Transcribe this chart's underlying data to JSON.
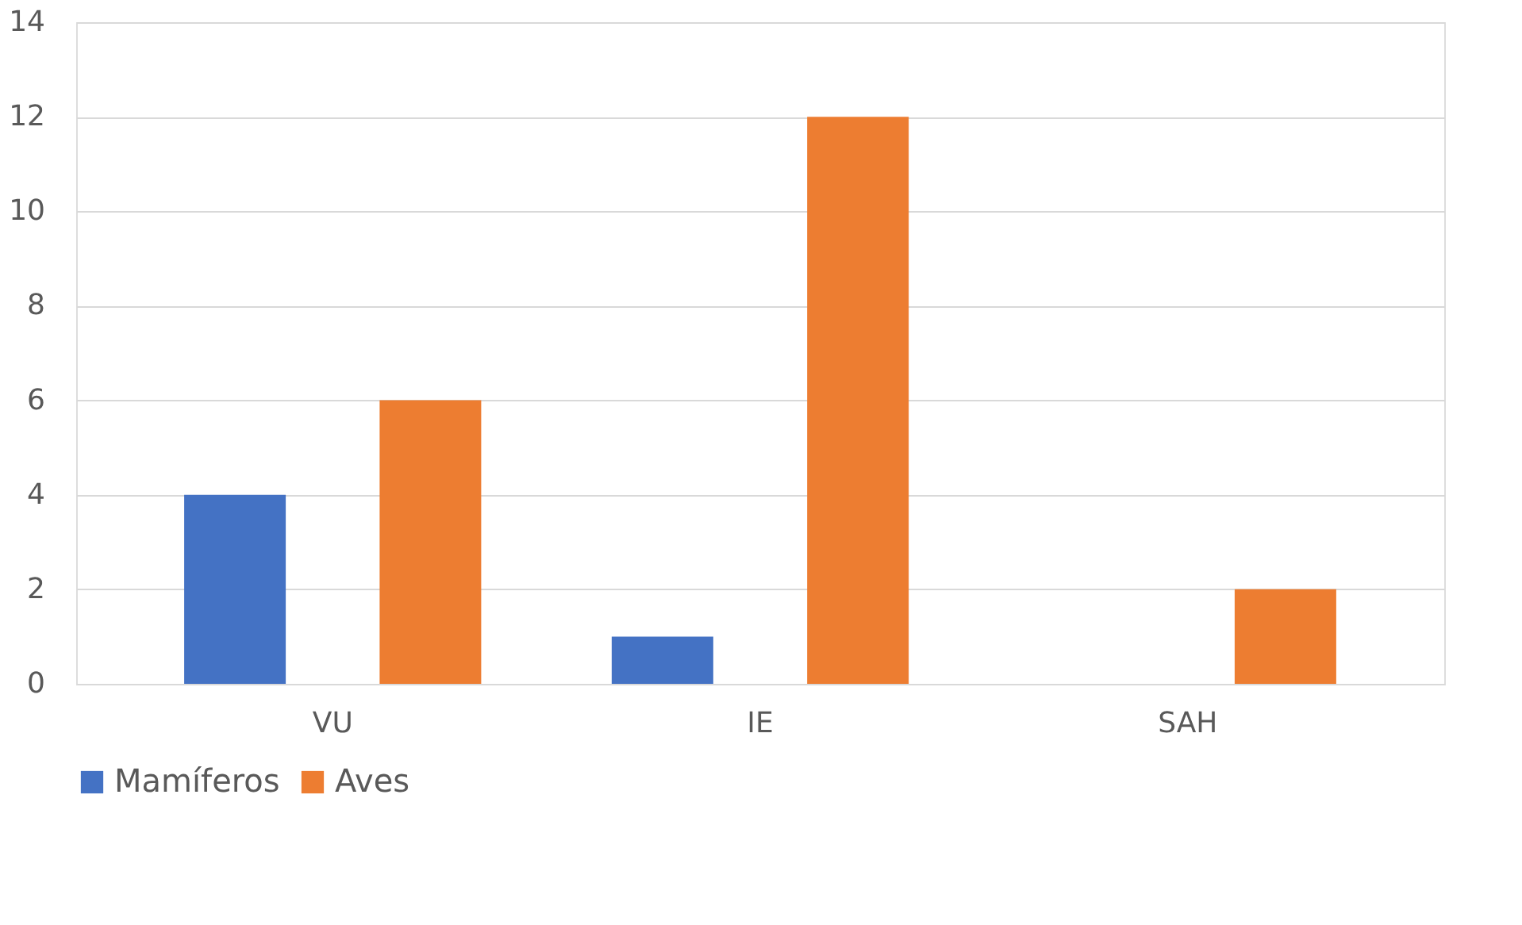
{
  "chart_data": {
    "type": "bar",
    "categories": [
      "VU",
      "IE",
      "SAH"
    ],
    "series": [
      {
        "name": "Mamíferos",
        "color": "#4472c4",
        "values": [
          4,
          1,
          0
        ]
      },
      {
        "name": "Aves",
        "color": "#ed7d31",
        "values": [
          6,
          12,
          2
        ]
      }
    ],
    "ylim": [
      0,
      14
    ],
    "yticks": [
      0,
      2,
      4,
      6,
      8,
      10,
      12,
      14
    ],
    "grid": "y",
    "legend": "bottom"
  }
}
